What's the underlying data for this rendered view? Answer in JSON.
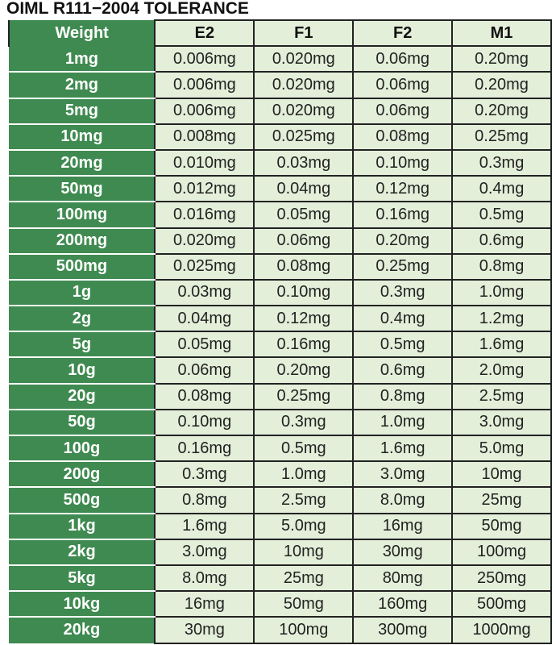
{
  "title": "OIML R111−2004 TOLERANCE",
  "colors": {
    "weight_column": "#3f8a50",
    "cell_background": "#e3efd9",
    "border": "#222222"
  },
  "columns": [
    "Weight",
    "E2",
    "F1",
    "F2",
    "M1"
  ],
  "rows": [
    [
      "1mg",
      "0.006mg",
      "0.020mg",
      "0.06mg",
      "0.20mg"
    ],
    [
      "2mg",
      "0.006mg",
      "0.020mg",
      "0.06mg",
      "0.20mg"
    ],
    [
      "5mg",
      "0.006mg",
      "0.020mg",
      "0.06mg",
      "0.20mg"
    ],
    [
      "10mg",
      "0.008mg",
      "0.025mg",
      "0.08mg",
      "0.25mg"
    ],
    [
      "20mg",
      "0.010mg",
      "0.03mg",
      "0.10mg",
      "0.3mg"
    ],
    [
      "50mg",
      "0.012mg",
      "0.04mg",
      "0.12mg",
      "0.4mg"
    ],
    [
      "100mg",
      "0.016mg",
      "0.05mg",
      "0.16mg",
      "0.5mg"
    ],
    [
      "200mg",
      "0.020mg",
      "0.06mg",
      "0.20mg",
      "0.6mg"
    ],
    [
      "500mg",
      "0.025mg",
      "0.08mg",
      "0.25mg",
      "0.8mg"
    ],
    [
      "1g",
      "0.03mg",
      "0.10mg",
      "0.3mg",
      "1.0mg"
    ],
    [
      "2g",
      "0.04mg",
      "0.12mg",
      "0.4mg",
      "1.2mg"
    ],
    [
      "5g",
      "0.05mg",
      "0.16mg",
      "0.5mg",
      "1.6mg"
    ],
    [
      "10g",
      "0.06mg",
      "0.20mg",
      "0.6mg",
      "2.0mg"
    ],
    [
      "20g",
      "0.08mg",
      "0.25mg",
      "0.8mg",
      "2.5mg"
    ],
    [
      "50g",
      "0.10mg",
      "0.3mg",
      "1.0mg",
      "3.0mg"
    ],
    [
      "100g",
      "0.16mg",
      "0.5mg",
      "1.6mg",
      "5.0mg"
    ],
    [
      "200g",
      "0.3mg",
      "1.0mg",
      "3.0mg",
      "10mg"
    ],
    [
      "500g",
      "0.8mg",
      "2.5mg",
      "8.0mg",
      "25mg"
    ],
    [
      "1kg",
      "1.6mg",
      "5.0mg",
      "16mg",
      "50mg"
    ],
    [
      "2kg",
      "3.0mg",
      "10mg",
      "30mg",
      "100mg"
    ],
    [
      "5kg",
      "8.0mg",
      "25mg",
      "80mg",
      "250mg"
    ],
    [
      "10kg",
      "16mg",
      "50mg",
      "160mg",
      "500mg"
    ],
    [
      "20kg",
      "30mg",
      "100mg",
      "300mg",
      "1000mg"
    ]
  ]
}
